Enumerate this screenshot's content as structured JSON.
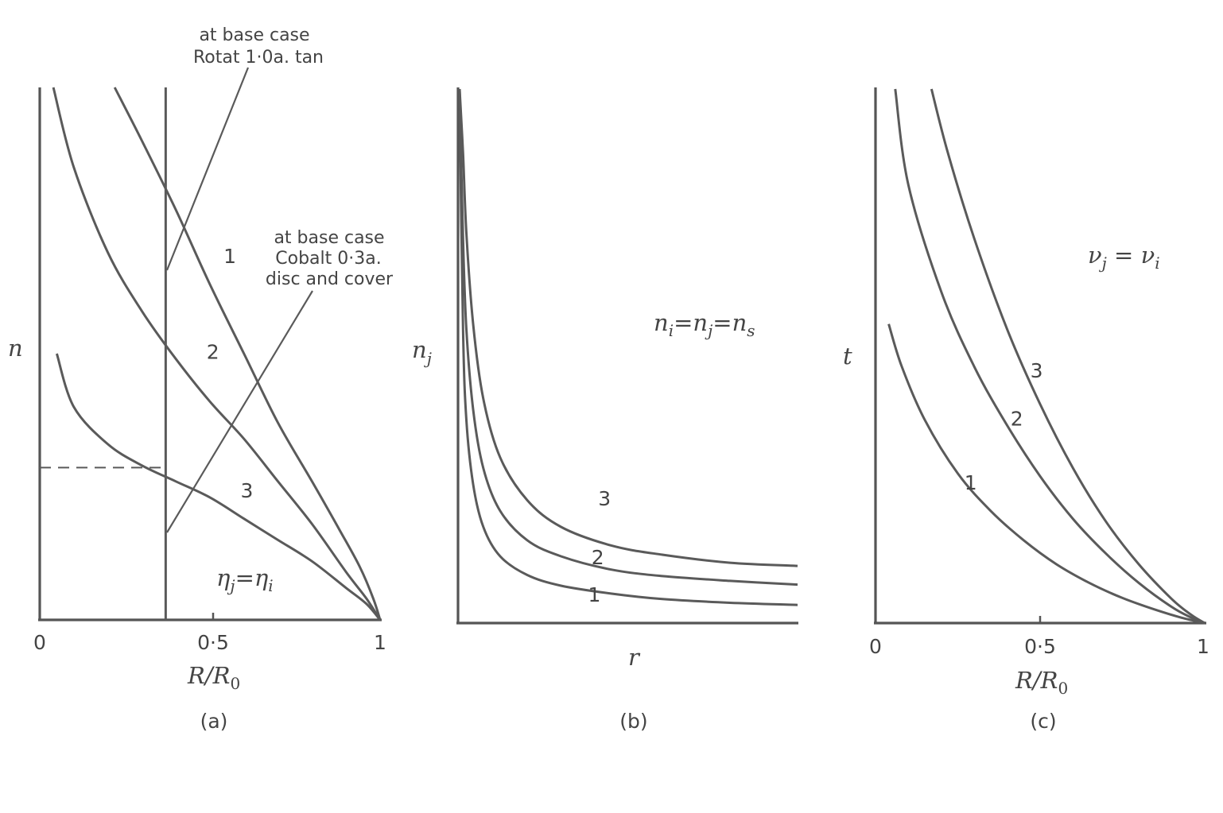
{
  "chart_data": [
    {
      "id": "a",
      "type": "line",
      "panel_label": "(a)",
      "ylabel": "n",
      "xlabel": "R/R",
      "xlabel_sub": "0",
      "xlim": [
        0,
        1
      ],
      "ylim": [
        0,
        1
      ],
      "x_ticks": [
        {
          "value": 0,
          "label": "0"
        },
        {
          "value": 0.5,
          "label": "0·5"
        },
        {
          "value": 1,
          "label": "1"
        }
      ],
      "series": [
        {
          "label": "1",
          "label_at": [
            0.54,
            0.67
          ],
          "points": [
            [
              0.22,
              1.0
            ],
            [
              0.3,
              0.9
            ],
            [
              0.4,
              0.77
            ],
            [
              0.5,
              0.63
            ],
            [
              0.6,
              0.5
            ],
            [
              0.7,
              0.37
            ],
            [
              0.8,
              0.26
            ],
            [
              0.88,
              0.17
            ],
            [
              0.94,
              0.1
            ],
            [
              0.98,
              0.04
            ],
            [
              1.0,
              0.0
            ]
          ]
        },
        {
          "label": "2",
          "label_at": [
            0.49,
            0.49
          ],
          "points": [
            [
              0.04,
              1.0
            ],
            [
              0.1,
              0.85
            ],
            [
              0.2,
              0.69
            ],
            [
              0.3,
              0.58
            ],
            [
              0.4,
              0.49
            ],
            [
              0.5,
              0.41
            ],
            [
              0.6,
              0.34
            ],
            [
              0.7,
              0.26
            ],
            [
              0.8,
              0.18
            ],
            [
              0.9,
              0.09
            ],
            [
              0.96,
              0.04
            ],
            [
              1.0,
              0.0
            ]
          ]
        },
        {
          "label": "3",
          "label_at": [
            0.59,
            0.23
          ],
          "points": [
            [
              0.05,
              0.5
            ],
            [
              0.1,
              0.4
            ],
            [
              0.2,
              0.33
            ],
            [
              0.3,
              0.29
            ],
            [
              0.4,
              0.26
            ],
            [
              0.5,
              0.23
            ],
            [
              0.6,
              0.19
            ],
            [
              0.7,
              0.15
            ],
            [
              0.8,
              0.11
            ],
            [
              0.9,
              0.06
            ],
            [
              0.96,
              0.03
            ],
            [
              1.0,
              0.0
            ]
          ]
        }
      ],
      "vertical_line_x": 0.37,
      "dashed_level_y": 0.286,
      "annotations": [
        {
          "lines": [
            "at base case",
            "Rotat 1·0a. tan"
          ],
          "points_to": [
            0.37,
            0.66
          ]
        },
        {
          "lines": [
            "at base case",
            "Cobalt 0·3a.",
            "disc and cover"
          ],
          "points_to": [
            0.37,
            0.165
          ]
        }
      ],
      "relation_prefix": "η",
      "relation_prefix_sub": "j",
      "relation_eq": "=η",
      "relation_eq_sub": "i"
    },
    {
      "id": "b",
      "type": "line",
      "panel_label": "(b)",
      "ylabel": "n",
      "ylabel_sub": "j",
      "xlabel": "r",
      "xlim": [
        0,
        1
      ],
      "ylim": [
        0,
        1
      ],
      "series": [
        {
          "label": "1",
          "label_at": [
            0.38,
            0.04
          ],
          "points": [
            [
              0.0,
              0.98
            ],
            [
              0.01,
              0.55
            ],
            [
              0.02,
              0.38
            ],
            [
              0.04,
              0.26
            ],
            [
              0.07,
              0.18
            ],
            [
              0.12,
              0.125
            ],
            [
              0.2,
              0.09
            ],
            [
              0.3,
              0.07
            ],
            [
              0.45,
              0.055
            ],
            [
              0.6,
              0.045
            ],
            [
              0.8,
              0.038
            ],
            [
              1.0,
              0.034
            ]
          ]
        },
        {
          "label": "2",
          "label_at": [
            0.39,
            0.11
          ],
          "points": [
            [
              0.0,
              1.0
            ],
            [
              0.01,
              0.72
            ],
            [
              0.02,
              0.55
            ],
            [
              0.04,
              0.4
            ],
            [
              0.07,
              0.29
            ],
            [
              0.12,
              0.21
            ],
            [
              0.2,
              0.155
            ],
            [
              0.3,
              0.125
            ],
            [
              0.45,
              0.1
            ],
            [
              0.6,
              0.088
            ],
            [
              0.8,
              0.079
            ],
            [
              1.0,
              0.072
            ]
          ]
        },
        {
          "label": "3",
          "label_at": [
            0.41,
            0.22
          ],
          "points": [
            [
              0.0,
              1.0
            ],
            [
              0.01,
              0.88
            ],
            [
              0.02,
              0.73
            ],
            [
              0.04,
              0.56
            ],
            [
              0.07,
              0.42
            ],
            [
              0.12,
              0.31
            ],
            [
              0.2,
              0.23
            ],
            [
              0.3,
              0.18
            ],
            [
              0.45,
              0.145
            ],
            [
              0.6,
              0.128
            ],
            [
              0.8,
              0.113
            ],
            [
              1.0,
              0.107
            ]
          ]
        }
      ],
      "relation_prefix": "n",
      "relation_prefix_sub": "i",
      "relation_eq": "=n",
      "relation_eq_sub": "j",
      "relation_eq2": "=n",
      "relation_eq2_sub": "s"
    },
    {
      "id": "c",
      "type": "line",
      "panel_label": "(c)",
      "ylabel": "t",
      "xlabel": "R/R",
      "xlabel_sub": "0",
      "xlim": [
        0,
        1
      ],
      "ylim": [
        0,
        1
      ],
      "x_ticks": [
        {
          "value": 0,
          "label": "0"
        },
        {
          "value": 0.5,
          "label": "0·5"
        },
        {
          "value": 1,
          "label": "1"
        }
      ],
      "series": [
        {
          "label": "1",
          "label_at": [
            0.27,
            0.25
          ],
          "points": [
            [
              0.04,
              0.56
            ],
            [
              0.08,
              0.48
            ],
            [
              0.15,
              0.38
            ],
            [
              0.25,
              0.28
            ],
            [
              0.35,
              0.21
            ],
            [
              0.45,
              0.155
            ],
            [
              0.55,
              0.11
            ],
            [
              0.65,
              0.075
            ],
            [
              0.75,
              0.047
            ],
            [
              0.85,
              0.025
            ],
            [
              0.93,
              0.01
            ],
            [
              1.0,
              0.0
            ]
          ]
        },
        {
          "label": "2",
          "label_at": [
            0.41,
            0.37
          ],
          "points": [
            [
              0.06,
              1.0
            ],
            [
              0.1,
              0.82
            ],
            [
              0.2,
              0.62
            ],
            [
              0.3,
              0.48
            ],
            [
              0.4,
              0.37
            ],
            [
              0.5,
              0.275
            ],
            [
              0.6,
              0.195
            ],
            [
              0.7,
              0.13
            ],
            [
              0.8,
              0.075
            ],
            [
              0.9,
              0.03
            ],
            [
              0.96,
              0.01
            ],
            [
              1.0,
              0.0
            ]
          ]
        },
        {
          "label": "3",
          "label_at": [
            0.47,
            0.46
          ],
          "points": [
            [
              0.17,
              1.0
            ],
            [
              0.22,
              0.88
            ],
            [
              0.3,
              0.72
            ],
            [
              0.4,
              0.55
            ],
            [
              0.5,
              0.41
            ],
            [
              0.6,
              0.29
            ],
            [
              0.7,
              0.19
            ],
            [
              0.8,
              0.11
            ],
            [
              0.9,
              0.045
            ],
            [
              0.96,
              0.015
            ],
            [
              1.0,
              0.0
            ]
          ]
        }
      ],
      "relation_prefix": "ν",
      "relation_prefix_sub": "j",
      "relation_eq": " = ν",
      "relation_eq_sub": "i"
    }
  ]
}
